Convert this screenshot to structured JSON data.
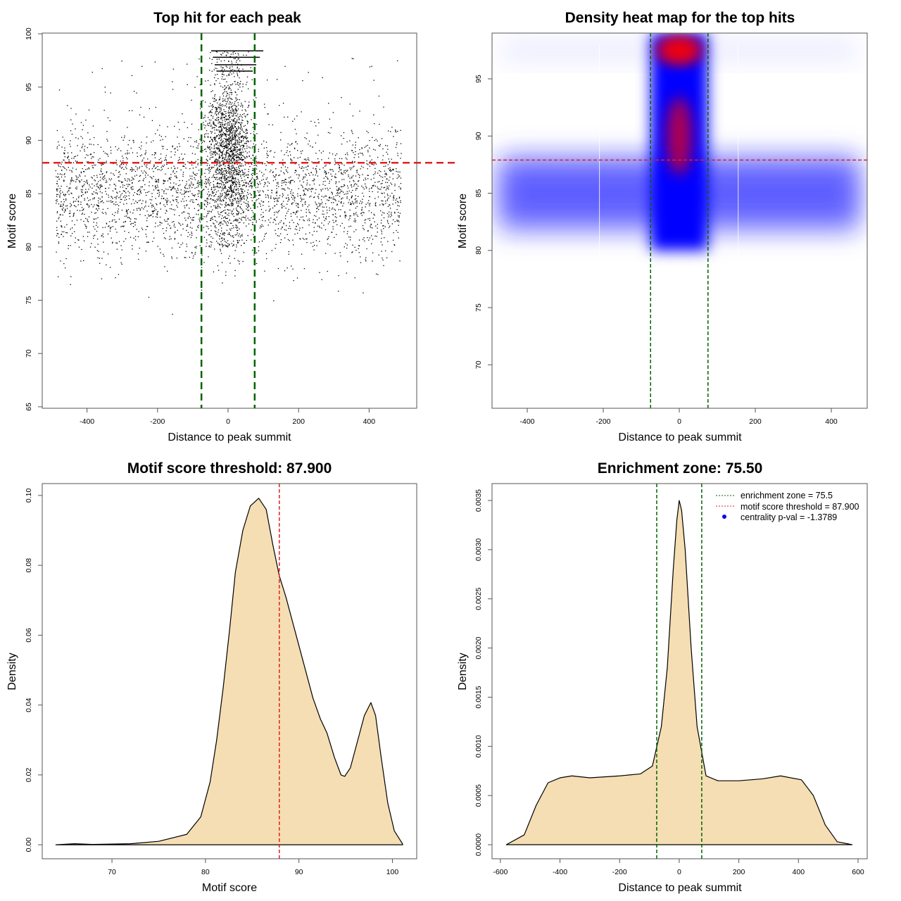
{
  "colors": {
    "threshold": "#e32020",
    "zone": "#006400",
    "fill": "#f5deb3",
    "point": "#000000",
    "legend_dot": "#0000ff"
  },
  "chart_data": [
    {
      "type": "scatter",
      "title": "Top hit for each peak",
      "xlabel": "Distance to peak summit",
      "ylabel": "Motif score",
      "xlim": [
        -527,
        535
      ],
      "ylim": [
        64.86,
        100.07
      ],
      "xticks": [
        -400,
        -200,
        0,
        200,
        400
      ],
      "yticks": [
        65,
        70,
        75,
        80,
        85,
        90,
        95,
        100
      ],
      "vlines": [
        -75.5,
        75.5
      ],
      "hline": 87.9,
      "points_model": {
        "n_background": 3200,
        "background_x": [
          -490,
          490
        ],
        "background_y_mean": 85,
        "background_y_sd": 3,
        "n_central": 1600,
        "central_x_sd": 30,
        "central_y_range": [
          80,
          98.4
        ],
        "max_score": 98.4
      }
    },
    {
      "type": "heatmap",
      "title": "Density heat map for the top hits",
      "xlabel": "Distance to peak summit",
      "ylabel": "Motif score",
      "xlim": [
        -492.6,
        494.4
      ],
      "ylim": [
        66.2,
        99.0
      ],
      "xticks": [
        -400,
        -200,
        0,
        200,
        400
      ],
      "yticks": [
        70,
        75,
        80,
        85,
        90,
        95
      ],
      "vlines": [
        -75.5,
        75.5
      ],
      "hline": 87.9,
      "hotspots": [
        {
          "x": 0,
          "y": 97.5,
          "level": "high"
        },
        {
          "x": 0,
          "y": 90,
          "level": "high"
        },
        {
          "x": 0,
          "y": 85,
          "level": "medium"
        }
      ]
    },
    {
      "type": "area",
      "title": "Motif score threshold: 87.900",
      "xlabel": "Motif score",
      "ylabel": "Density",
      "xlim": [
        62.54,
        102.6
      ],
      "ylim": [
        -0.004,
        0.1034
      ],
      "xticks": [
        70,
        80,
        90,
        100
      ],
      "yticks": [
        0,
        0.02,
        0.04,
        0.06,
        0.08,
        0.1
      ],
      "ytick_labels": [
        "0.00",
        "0.02",
        "0.04",
        "0.06",
        "0.08",
        "0.10"
      ],
      "vlines": [
        87.9
      ],
      "x": [
        64,
        66,
        68,
        72,
        75,
        78,
        79.5,
        80.5,
        81.2,
        81.9,
        82.6,
        83.2,
        84,
        84.8,
        85.7,
        86.5,
        87.2,
        87.9,
        88.6,
        89.5,
        90.5,
        91.5,
        92.3,
        93,
        93.8,
        94.5,
        94.9,
        95.5,
        96.3,
        97,
        97.7,
        98.2,
        98.8,
        99.5,
        100.2,
        101.1
      ],
      "y": [
        0,
        0.0003,
        0.0001,
        0.0003,
        0.001,
        0.003,
        0.008,
        0.018,
        0.03,
        0.045,
        0.062,
        0.078,
        0.09,
        0.097,
        0.0992,
        0.096,
        0.086,
        0.077,
        0.071,
        0.062,
        0.052,
        0.042,
        0.036,
        0.032,
        0.025,
        0.02,
        0.0196,
        0.022,
        0.03,
        0.037,
        0.0407,
        0.037,
        0.025,
        0.012,
        0.004,
        0.0002
      ]
    },
    {
      "type": "area",
      "title": "Enrichment zone: 75.50",
      "xlabel": "Distance to peak summit",
      "ylabel": "Density",
      "xlim": [
        -628,
        630.7
      ],
      "ylim": [
        -0.000143,
        0.003672
      ],
      "xticks": [
        -600,
        -400,
        -200,
        0,
        200,
        400,
        600
      ],
      "yticks": [
        0,
        0.0005,
        0.001,
        0.0015,
        0.002,
        0.0025,
        0.003,
        0.0035
      ],
      "ytick_labels": [
        "0.0000",
        "0.0005",
        "0.0010",
        "0.0015",
        "0.0020",
        "0.0025",
        "0.0030",
        "0.0035"
      ],
      "vlines": [
        -75.5,
        75.5
      ],
      "x": [
        -580,
        -520,
        -480,
        -440,
        -400,
        -360,
        -300,
        -200,
        -130,
        -90,
        -60,
        -40,
        -20,
        -8,
        0,
        8,
        20,
        40,
        60,
        90,
        130,
        200,
        280,
        340,
        410,
        450,
        490,
        530,
        580
      ],
      "y": [
        0,
        0.0001,
        0.0004,
        0.00063,
        0.00068,
        0.0007,
        0.00068,
        0.0007,
        0.00072,
        0.0008,
        0.0012,
        0.0018,
        0.0028,
        0.0033,
        0.0035,
        0.0034,
        0.003,
        0.002,
        0.0012,
        0.0007,
        0.00065,
        0.00065,
        0.00067,
        0.0007,
        0.00066,
        0.0005,
        0.0002,
        3e-05,
        0
      ],
      "legend": [
        "enrichment zone = 75.5",
        "motif score threshold = 87.900",
        "centrality p-val = -1.3789"
      ],
      "legend_position": "top-right"
    }
  ]
}
